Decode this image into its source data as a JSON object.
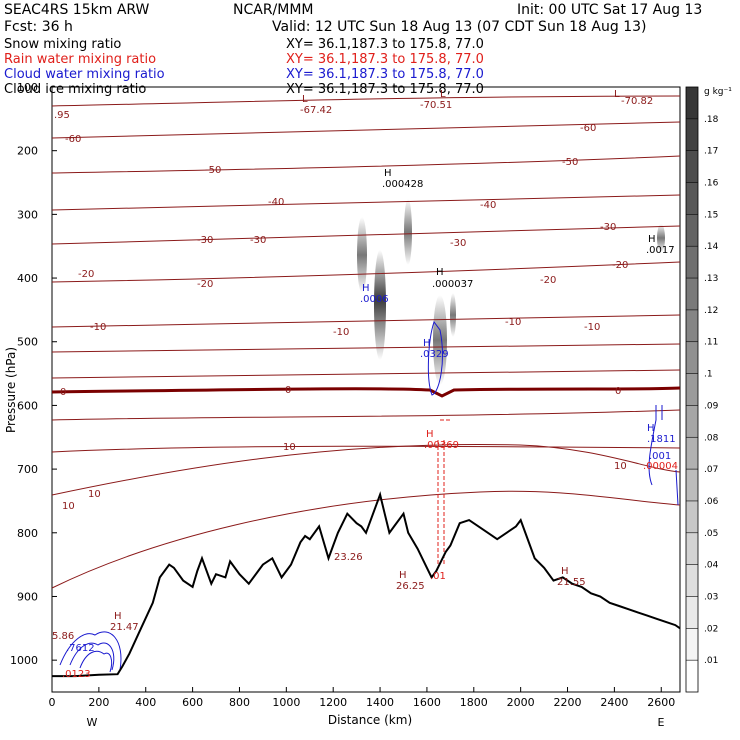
{
  "header": {
    "model": "SEAC4RS 15km ARW",
    "institution": "NCAR/MMM",
    "init": "Init: 00 UTC Sat 17 Aug 13",
    "forecast": "Fcst:    36 h",
    "valid": "Valid: 12 UTC Sun 18 Aug 13 (07 CDT Sun 18 Aug 13)",
    "fields": [
      {
        "name": "Snow mixing ratio",
        "xy": "XY=  36.1,187.3 to 175.8, 77.0",
        "color": "#000000"
      },
      {
        "name": "Rain water mixing ratio",
        "xy": "XY=  36.1,187.3 to 175.8, 77.0",
        "color": "#e0201b"
      },
      {
        "name": "Cloud water mixing ratio",
        "xy": "XY=  36.1,187.3 to 175.8, 77.0",
        "color": "#1a1acf"
      },
      {
        "name": "Cloud ice mixing ratio",
        "xy": "XY=  36.1,187.3 to 175.8, 77.0",
        "color": "#000000"
      }
    ]
  },
  "colors": {
    "temperature": "#8b1a1a",
    "freezing": "#7a0000",
    "rain": "#e0201b",
    "cloud": "#1a1acf",
    "terrain": "#000000",
    "snow_shade": "#404040"
  },
  "chart_data": {
    "type": "heatmap",
    "xlabel": "Distance (km)",
    "ylabel": "Pressure (hPa)",
    "xlim": [
      0,
      2680
    ],
    "ylim": [
      1050,
      100
    ],
    "x_ticks": [
      "0",
      "200",
      "400",
      "600",
      "800",
      "1000",
      "1200",
      "1400",
      "1600",
      "1800",
      "2000",
      "2200",
      "2400",
      "2600"
    ],
    "y_ticks": [
      "100",
      "200",
      "300",
      "400",
      "500",
      "600",
      "700",
      "800",
      "900",
      "1000"
    ],
    "end_labels": {
      "left": "W",
      "right": "E"
    },
    "colorbar": {
      "unit": "g kg⁻¹",
      "levels": [
        ".01",
        ".02",
        ".03",
        ".04",
        ".05",
        ".06",
        ".07",
        ".08",
        ".09",
        ".1",
        ".11",
        ".12",
        ".13",
        ".14",
        ".15",
        ".16",
        ".17",
        ".18"
      ]
    },
    "temperature_contour_labels": [
      "-67.42",
      "-70.51",
      "-70.82",
      "-60",
      "-60",
      "-50",
      "-50",
      "-40",
      "-40",
      "-30",
      "-30",
      "-30",
      "-30",
      "-20",
      "-20",
      "-20",
      "-20",
      "-10",
      "-10",
      "-10",
      "-10",
      "0",
      "0",
      "0",
      "10",
      "10",
      "10",
      "10"
    ],
    "extrema_labels": [
      {
        "mark": "H",
        "value": ".000428"
      },
      {
        "mark": "H",
        "value": ".000037"
      },
      {
        "mark": "H",
        "value": ".0017"
      },
      {
        "mark": "H",
        "value": ".0006"
      },
      {
        "mark": "H",
        "value": ".0329"
      },
      {
        "mark": "H",
        "value": ".00369"
      },
      {
        "mark": "H",
        "value": ".1811"
      },
      {
        "mark": "",
        "value": ".001"
      },
      {
        "mark": "",
        "value": ".00004"
      },
      {
        "mark": "H",
        "value": "21.47"
      },
      {
        "mark": "",
        "value": "23.26"
      },
      {
        "mark": "H",
        "value": "26.25"
      },
      {
        "mark": "",
        "value": ".01"
      },
      {
        "mark": "H",
        "value": "21.55"
      },
      {
        "mark": "",
        "value": "5.86"
      },
      {
        "mark": "",
        "value": ".7612"
      },
      {
        "mark": "",
        "value": ".0123"
      },
      {
        "mark": "",
        "value": ".95"
      },
      {
        "mark": "L",
        "value": ""
      },
      {
        "mark": "L",
        "value": ""
      },
      {
        "mark": "L",
        "value": ""
      }
    ],
    "terrain_profile": {
      "x": [
        0,
        100,
        200,
        280,
        300,
        330,
        380,
        430,
        460,
        500,
        520,
        560,
        600,
        620,
        640,
        680,
        700,
        740,
        760,
        800,
        840,
        880,
        900,
        940,
        980,
        1020,
        1060,
        1080,
        1100,
        1140,
        1180,
        1200,
        1220,
        1260,
        1300,
        1320,
        1340,
        1380,
        1400,
        1420,
        1440,
        1460,
        1500,
        1520,
        1560,
        1600,
        1620,
        1640,
        1660,
        1680,
        1700,
        1740,
        1780,
        1820,
        1860,
        1900,
        1940,
        1980,
        2000,
        2040,
        2060,
        2100,
        2140,
        2180,
        2220,
        2260,
        2300,
        2340,
        2380,
        2420,
        2460,
        2500,
        2540,
        2580,
        2620,
        2660,
        2680
      ],
      "p": [
        1025,
        1025,
        1023,
        1022,
        1010,
        990,
        950,
        910,
        870,
        850,
        855,
        875,
        885,
        860,
        840,
        880,
        865,
        870,
        845,
        865,
        880,
        860,
        850,
        840,
        870,
        850,
        815,
        805,
        810,
        790,
        840,
        820,
        800,
        770,
        785,
        790,
        800,
        760,
        740,
        770,
        800,
        790,
        770,
        800,
        825,
        855,
        870,
        860,
        845,
        830,
        820,
        785,
        780,
        790,
        800,
        810,
        800,
        790,
        780,
        820,
        840,
        855,
        875,
        870,
        880,
        885,
        895,
        900,
        910,
        915,
        920,
        925,
        930,
        935,
        940,
        945,
        950
      ]
    },
    "temperature_levels_C": [
      -70,
      -60,
      -50,
      -40,
      -30,
      -20,
      -10,
      0,
      10
    ]
  }
}
